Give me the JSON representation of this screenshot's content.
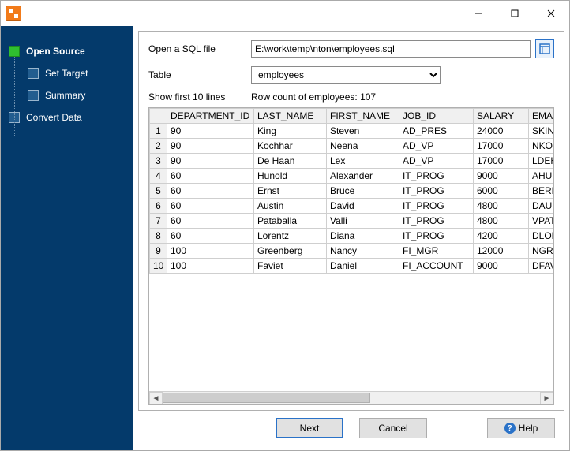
{
  "titlebar": {
    "title": ""
  },
  "sidebar": {
    "items": [
      {
        "label": "Open Source",
        "active": true
      },
      {
        "label": "Set Target",
        "active": false
      },
      {
        "label": "Summary",
        "active": false
      },
      {
        "label": "Convert Data",
        "active": false
      }
    ]
  },
  "form": {
    "sql_label": "Open a SQL file",
    "sql_value": "E:\\work\\temp\\nton\\employees.sql",
    "table_label": "Table",
    "table_value": "employees",
    "show_first_label": "Show first 10 lines",
    "row_count_label": "Row count of employees: 107"
  },
  "table": {
    "columns": [
      "DEPARTMENT_ID",
      "LAST_NAME",
      "FIRST_NAME",
      "JOB_ID",
      "SALARY",
      "EMAIL"
    ],
    "rows": [
      [
        "90",
        "King",
        "Steven",
        "AD_PRES",
        "24000",
        "SKING"
      ],
      [
        "90",
        "Kochhar",
        "Neena",
        "AD_VP",
        "17000",
        "NKOCHHAR"
      ],
      [
        "90",
        "De Haan",
        "Lex",
        "AD_VP",
        "17000",
        "LDEHAAN"
      ],
      [
        "60",
        "Hunold",
        "Alexander",
        "IT_PROG",
        "9000",
        "AHUNOLD"
      ],
      [
        "60",
        "Ernst",
        "Bruce",
        "IT_PROG",
        "6000",
        "BERNST"
      ],
      [
        "60",
        "Austin",
        "David",
        "IT_PROG",
        "4800",
        "DAUSTIN"
      ],
      [
        "60",
        "Pataballa",
        "Valli",
        "IT_PROG",
        "4800",
        "VPATABAL"
      ],
      [
        "60",
        "Lorentz",
        "Diana",
        "IT_PROG",
        "4200",
        "DLORENTZ"
      ],
      [
        "100",
        "Greenberg",
        "Nancy",
        "FI_MGR",
        "12000",
        "NGREENBE"
      ],
      [
        "100",
        "Faviet",
        "Daniel",
        "FI_ACCOUNT",
        "9000",
        "DFAVIET"
      ]
    ]
  },
  "buttons": {
    "next": "Next",
    "cancel": "Cancel",
    "help": "Help"
  },
  "colors": {
    "sidebar_bg": "#043a6b",
    "accent": "#2a72c8",
    "active_step": "#2fbf2f"
  }
}
